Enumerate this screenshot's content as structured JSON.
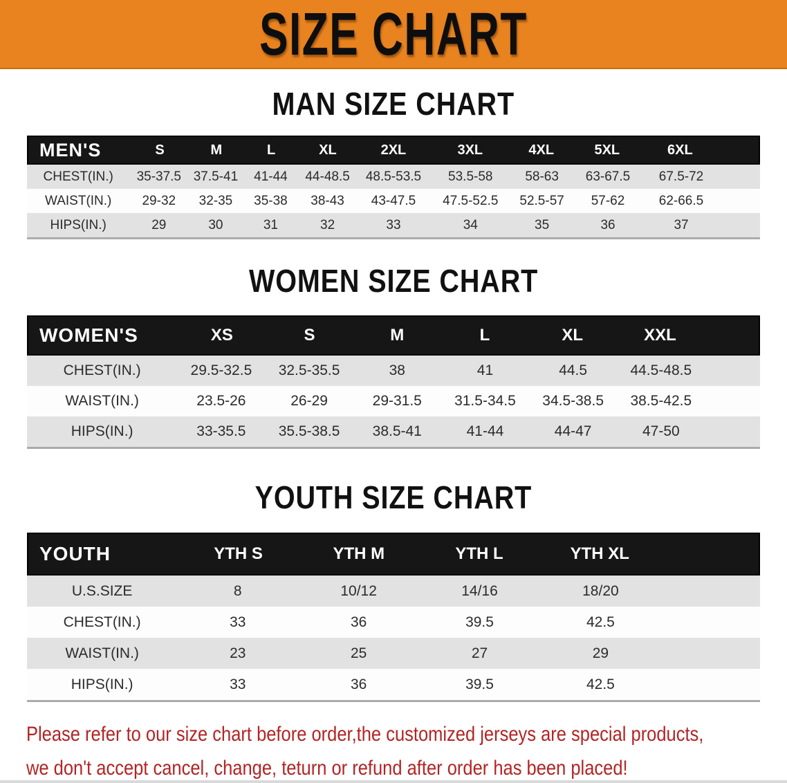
{
  "banner": {
    "title": "SIZE CHART"
  },
  "colors": {
    "banner_orange": "#E8831F",
    "header_black": "#161616",
    "row_gray": "#E2E2E2",
    "note_red": "#B22424"
  },
  "sections": [
    {
      "heading": "MAN SIZE CHART",
      "corner_label": "MEN'S",
      "columns": [
        "S",
        "M",
        "L",
        "XL",
        "2XL",
        "3XL",
        "4XL",
        "5XL",
        "6XL"
      ],
      "rows": [
        {
          "label": "CHEST(IN.)",
          "values": [
            "35-37.5",
            "37.5-41",
            "41-44",
            "44-48.5",
            "48.5-53.5",
            "53.5-58",
            "58-63",
            "63-67.5",
            "67.5-72"
          ]
        },
        {
          "label": "WAIST(IN.)",
          "values": [
            "29-32",
            "32-35",
            "35-38",
            "38-43",
            "43-47.5",
            "47.5-52.5",
            "52.5-57",
            "57-62",
            "62-66.5"
          ]
        },
        {
          "label": "HIPS(IN.)",
          "values": [
            "29",
            "30",
            "31",
            "32",
            "33",
            "34",
            "35",
            "36",
            "37"
          ]
        }
      ]
    },
    {
      "heading": "WOMEN SIZE CHART",
      "corner_label": "WOMEN'S",
      "columns": [
        "XS",
        "S",
        "M",
        "L",
        "XL",
        "XXL"
      ],
      "rows": [
        {
          "label": "CHEST(IN.)",
          "values": [
            "29.5-32.5",
            "32.5-35.5",
            "38",
            "41",
            "44.5",
            "44.5-48.5"
          ]
        },
        {
          "label": "WAIST(IN.)",
          "values": [
            "23.5-26",
            "26-29",
            "29-31.5",
            "31.5-34.5",
            "34.5-38.5",
            "38.5-42.5"
          ]
        },
        {
          "label": "HIPS(IN.)",
          "values": [
            "33-35.5",
            "35.5-38.5",
            "38.5-41",
            "41-44",
            "44-47",
            "47-50"
          ]
        }
      ]
    },
    {
      "heading": "YOUTH SIZE CHART",
      "corner_label": "YOUTH",
      "columns": [
        "YTH S",
        "YTH M",
        "YTH L",
        "YTH XL"
      ],
      "rows": [
        {
          "label": "U.S.SIZE",
          "values": [
            "8",
            "10/12",
            "14/16",
            "18/20"
          ]
        },
        {
          "label": "CHEST(IN.)",
          "values": [
            "33",
            "36",
            "39.5",
            "42.5"
          ]
        },
        {
          "label": "WAIST(IN.)",
          "values": [
            "23",
            "25",
            "27",
            "29"
          ]
        },
        {
          "label": "HIPS(IN.)",
          "values": [
            "33",
            "36",
            "39.5",
            "42.5"
          ]
        }
      ]
    }
  ],
  "footer": {
    "line1": "Please refer to our size chart before order,the customized jerseys are special products,",
    "line2": "we don't accept cancel, change, teturn or refund after order has been placed!"
  }
}
